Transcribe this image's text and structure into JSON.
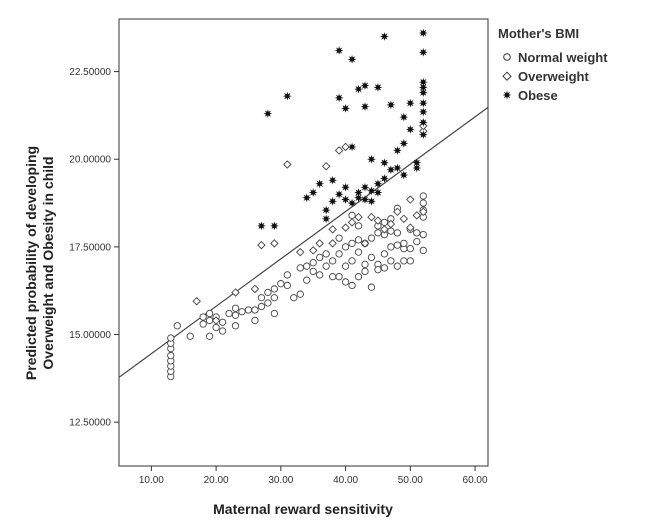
{
  "chart_data": {
    "type": "scatter",
    "xlabel": "Maternal reward sensitivity",
    "ylabel_line1": "Predicted probability of developing",
    "ylabel_line2": "Overweight and Obesity in child",
    "xlim": [
      5,
      62
    ],
    "ylim": [
      11.25,
      24.0
    ],
    "x_ticks": [
      10,
      20,
      30,
      40,
      50,
      60
    ],
    "x_tick_labels": [
      "10.00",
      "20.00",
      "30.00",
      "40.00",
      "50.00",
      "60.00"
    ],
    "y_ticks": [
      12.5,
      15.0,
      17.5,
      20.0,
      22.5
    ],
    "y_tick_labels": [
      "12.50000",
      "15.00000",
      "17.50000",
      "20.00000",
      "22.50000"
    ],
    "legend": {
      "title": "Mother's BMI",
      "position": "right",
      "entries": [
        {
          "label": "Normal weight",
          "marker": "circle"
        },
        {
          "label": "Overweight",
          "marker": "diamond"
        },
        {
          "label": "Obese",
          "marker": "star"
        }
      ]
    },
    "fit_line": {
      "x": [
        5,
        62
      ],
      "y": [
        13.78,
        21.48
      ]
    },
    "series": [
      {
        "name": "Normal weight",
        "marker": "circle",
        "points": [
          [
            13,
            13.8
          ],
          [
            13,
            13.95
          ],
          [
            13,
            14.1
          ],
          [
            13,
            14.25
          ],
          [
            13,
            14.4
          ],
          [
            13,
            14.6
          ],
          [
            13,
            14.75
          ],
          [
            13,
            14.9
          ],
          [
            14,
            15.25
          ],
          [
            16,
            14.95
          ],
          [
            18,
            15.5
          ],
          [
            18,
            15.3
          ],
          [
            19,
            15.4
          ],
          [
            19,
            15.6
          ],
          [
            19,
            14.95
          ],
          [
            20,
            15.2
          ],
          [
            20,
            15.5
          ],
          [
            21,
            15.35
          ],
          [
            21,
            15.1
          ],
          [
            22,
            15.6
          ],
          [
            23,
            15.55
          ],
          [
            23,
            15.25
          ],
          [
            23,
            15.75
          ],
          [
            24,
            15.65
          ],
          [
            25,
            15.7
          ],
          [
            26,
            15.7
          ],
          [
            26,
            15.4
          ],
          [
            27,
            16.05
          ],
          [
            27,
            15.8
          ],
          [
            28,
            16.2
          ],
          [
            28,
            15.9
          ],
          [
            29,
            16.3
          ],
          [
            29,
            16.05
          ],
          [
            29,
            15.6
          ],
          [
            30,
            16.45
          ],
          [
            31,
            16.7
          ],
          [
            31,
            16.4
          ],
          [
            32,
            16.05
          ],
          [
            33,
            16.9
          ],
          [
            33,
            16.15
          ],
          [
            34,
            16.95
          ],
          [
            34,
            16.55
          ],
          [
            35,
            16.8
          ],
          [
            35,
            17.05
          ],
          [
            36,
            16.7
          ],
          [
            36,
            17.2
          ],
          [
            37,
            17.3
          ],
          [
            37,
            16.95
          ],
          [
            38,
            17.1
          ],
          [
            38,
            16.65
          ],
          [
            39,
            17.3
          ],
          [
            39,
            16.65
          ],
          [
            39,
            17.75
          ],
          [
            40,
            17.5
          ],
          [
            40,
            16.95
          ],
          [
            40,
            16.5
          ],
          [
            41,
            17.6
          ],
          [
            41,
            17.1
          ],
          [
            41,
            16.4
          ],
          [
            41,
            18.4
          ],
          [
            42,
            17.7
          ],
          [
            42,
            17.35
          ],
          [
            42,
            16.65
          ],
          [
            42,
            18.1
          ],
          [
            43,
            17.6
          ],
          [
            43,
            16.8
          ],
          [
            43,
            17.0
          ],
          [
            44,
            17.75
          ],
          [
            44,
            16.35
          ],
          [
            44,
            17.2
          ],
          [
            45,
            17.9
          ],
          [
            45,
            17.0
          ],
          [
            45,
            16.85
          ],
          [
            45,
            18.1
          ],
          [
            46,
            17.85
          ],
          [
            46,
            17.3
          ],
          [
            46,
            16.9
          ],
          [
            46,
            18.2
          ],
          [
            47,
            17.95
          ],
          [
            47,
            17.5
          ],
          [
            47,
            17.1
          ],
          [
            47,
            18.3
          ],
          [
            48,
            17.9
          ],
          [
            48,
            17.55
          ],
          [
            48,
            16.95
          ],
          [
            48,
            18.6
          ],
          [
            49,
            17.45
          ],
          [
            49,
            17.6
          ],
          [
            49,
            17.1
          ],
          [
            50,
            18.0
          ],
          [
            50,
            17.45
          ],
          [
            50,
            17.1
          ],
          [
            51,
            17.9
          ],
          [
            51,
            17.65
          ],
          [
            52,
            18.55
          ],
          [
            52,
            18.35
          ],
          [
            52,
            17.4
          ],
          [
            52,
            17.85
          ],
          [
            52,
            18.75
          ],
          [
            52,
            18.95
          ]
        ]
      },
      {
        "name": "Overweight",
        "marker": "diamond",
        "points": [
          [
            17,
            15.95
          ],
          [
            20,
            15.4
          ],
          [
            23,
            16.2
          ],
          [
            26,
            16.3
          ],
          [
            27,
            17.55
          ],
          [
            29,
            17.6
          ],
          [
            31,
            19.85
          ],
          [
            33,
            17.35
          ],
          [
            35,
            17.4
          ],
          [
            36,
            17.6
          ],
          [
            37,
            19.8
          ],
          [
            38,
            17.6
          ],
          [
            38,
            18.0
          ],
          [
            39,
            20.25
          ],
          [
            40,
            20.35
          ],
          [
            40,
            18.05
          ],
          [
            41,
            18.2
          ],
          [
            42,
            18.35
          ],
          [
            43,
            17.6
          ],
          [
            44,
            18.35
          ],
          [
            45,
            18.25
          ],
          [
            46,
            18.0
          ],
          [
            47,
            18.15
          ],
          [
            48,
            18.5
          ],
          [
            49,
            18.3
          ],
          [
            50,
            18.05
          ],
          [
            50,
            18.85
          ],
          [
            51,
            18.4
          ],
          [
            52,
            20.8
          ],
          [
            52,
            20.95
          ],
          [
            52,
            18.5
          ]
        ]
      },
      {
        "name": "Obese",
        "marker": "star",
        "points": [
          [
            27,
            18.1
          ],
          [
            28,
            21.3
          ],
          [
            29,
            18.1
          ],
          [
            31,
            21.8
          ],
          [
            34,
            18.9
          ],
          [
            35,
            19.05
          ],
          [
            36,
            19.3
          ],
          [
            37,
            18.3
          ],
          [
            37,
            18.55
          ],
          [
            38,
            19.4
          ],
          [
            38,
            18.8
          ],
          [
            39,
            23.1
          ],
          [
            39,
            19.0
          ],
          [
            39,
            21.75
          ],
          [
            40,
            18.85
          ],
          [
            40,
            19.2
          ],
          [
            40,
            21.45
          ],
          [
            41,
            22.85
          ],
          [
            41,
            18.75
          ],
          [
            41,
            20.35
          ],
          [
            42,
            19.05
          ],
          [
            42,
            22.0
          ],
          [
            42,
            18.9
          ],
          [
            43,
            22.1
          ],
          [
            43,
            19.2
          ],
          [
            43,
            18.85
          ],
          [
            43,
            21.5
          ],
          [
            44,
            20.0
          ],
          [
            44,
            18.8
          ],
          [
            44,
            19.1
          ],
          [
            45,
            22.05
          ],
          [
            45,
            19.3
          ],
          [
            45,
            19.05
          ],
          [
            46,
            23.5
          ],
          [
            46,
            19.45
          ],
          [
            46,
            19.9
          ],
          [
            47,
            19.7
          ],
          [
            47,
            21.55
          ],
          [
            48,
            20.25
          ],
          [
            48,
            19.75
          ],
          [
            49,
            20.45
          ],
          [
            49,
            21.2
          ],
          [
            49,
            19.55
          ],
          [
            50,
            21.6
          ],
          [
            50,
            20.85
          ],
          [
            51,
            19.9
          ],
          [
            51,
            19.75
          ],
          [
            52,
            23.6
          ],
          [
            52,
            23.05
          ],
          [
            52,
            22.2
          ],
          [
            52,
            22.05
          ],
          [
            52,
            21.9
          ],
          [
            52,
            21.6
          ],
          [
            52,
            21.35
          ],
          [
            52,
            21.05
          ],
          [
            52,
            20.7
          ]
        ]
      }
    ]
  }
}
